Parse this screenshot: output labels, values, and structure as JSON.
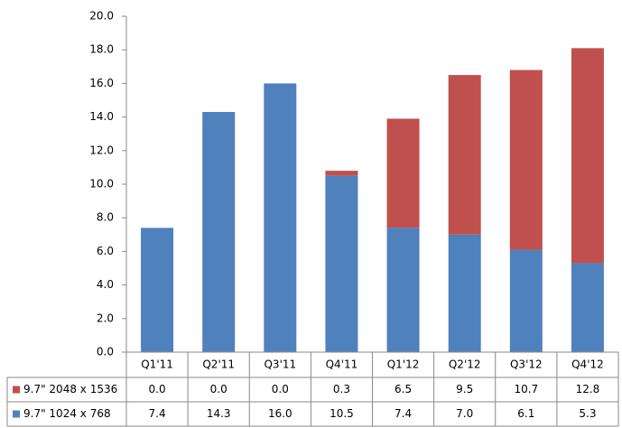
{
  "chart_data": {
    "type": "stacked-bar",
    "categories": [
      "Q1'11",
      "Q2'11",
      "Q3'11",
      "Q4'11",
      "Q1'12",
      "Q2'12",
      "Q3'12",
      "Q4'12"
    ],
    "series": [
      {
        "name": "9.7\" 2048 x 1536",
        "color": "#c0504d",
        "values": [
          0,
          0,
          0,
          0.3,
          6.5,
          9.5,
          10.7,
          12.8
        ],
        "value_labels": [
          "0.0",
          "0.0",
          "0.0",
          "0.3",
          "6.5",
          "9.5",
          "10.7",
          "12.8"
        ]
      },
      {
        "name": "9.7\" 1024 x 768",
        "color": "#4f81bd",
        "values": [
          7.4,
          14.3,
          16.0,
          10.5,
          7.4,
          7.0,
          6.1,
          5.3
        ],
        "value_labels": [
          "7.4",
          "14.3",
          "16.0",
          "10.5",
          "7.4",
          "7.0",
          "6.1",
          "5.3"
        ]
      }
    ],
    "ylim": [
      0,
      20
    ],
    "yticks": [
      {
        "value": 0,
        "label": "0.0"
      },
      {
        "value": 2,
        "label": "2.0"
      },
      {
        "value": 4,
        "label": "4.0"
      },
      {
        "value": 6,
        "label": "6.0"
      },
      {
        "value": 8,
        "label": "8.0"
      },
      {
        "value": 10,
        "label": "10.0"
      },
      {
        "value": 12,
        "label": "12.0"
      },
      {
        "value": 14,
        "label": "14.0"
      },
      {
        "value": 16,
        "label": "16.0"
      },
      {
        "value": 18,
        "label": "18.0"
      },
      {
        "value": 20,
        "label": "20.0"
      }
    ],
    "grid": false
  }
}
